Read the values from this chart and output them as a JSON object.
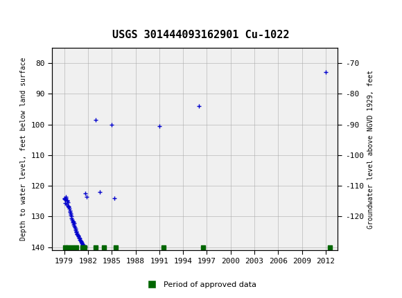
{
  "title": "USGS 301444093162901 Cu-1022",
  "ylabel_left": "Depth to water level, feet below land surface",
  "ylabel_right": "Groundwater level above NGVD 1929, feet",
  "xlabel": "",
  "ylim_left": [
    75,
    141
  ],
  "ylim_right": [
    -65,
    -131
  ],
  "yticks_left": [
    80,
    90,
    100,
    110,
    120,
    130,
    140
  ],
  "yticks_right": [
    -70,
    -80,
    -90,
    -100,
    -110,
    -120
  ],
  "xticks": [
    1979,
    1982,
    1985,
    1988,
    1991,
    1994,
    1997,
    2000,
    2003,
    2006,
    2009,
    2012
  ],
  "xlim": [
    1977.5,
    2013.5
  ],
  "blue_points": [
    [
      1979.1,
      124.5
    ],
    [
      1979.15,
      125.5
    ],
    [
      1979.2,
      124.0
    ],
    [
      1979.25,
      123.5
    ],
    [
      1979.3,
      126.0
    ],
    [
      1979.35,
      125.0
    ],
    [
      1979.4,
      124.8
    ],
    [
      1979.45,
      125.3
    ],
    [
      1979.5,
      126.5
    ],
    [
      1979.55,
      127.0
    ],
    [
      1979.6,
      126.8
    ],
    [
      1979.65,
      127.5
    ],
    [
      1979.7,
      128.0
    ],
    [
      1979.75,
      128.5
    ],
    [
      1979.8,
      129.0
    ],
    [
      1979.85,
      129.5
    ],
    [
      1979.9,
      130.0
    ],
    [
      1979.95,
      130.5
    ],
    [
      1980.0,
      131.0
    ],
    [
      1980.05,
      131.5
    ],
    [
      1980.1,
      132.0
    ],
    [
      1980.15,
      132.5
    ],
    [
      1980.2,
      131.8
    ],
    [
      1980.25,
      132.2
    ],
    [
      1980.3,
      133.0
    ],
    [
      1980.35,
      133.5
    ],
    [
      1980.4,
      134.0
    ],
    [
      1980.45,
      134.5
    ],
    [
      1980.5,
      134.8
    ],
    [
      1980.55,
      135.0
    ],
    [
      1980.6,
      135.5
    ],
    [
      1980.65,
      135.8
    ],
    [
      1980.7,
      136.0
    ],
    [
      1980.75,
      136.3
    ],
    [
      1980.8,
      136.5
    ],
    [
      1980.85,
      136.8
    ],
    [
      1980.9,
      137.0
    ],
    [
      1980.95,
      137.2
    ],
    [
      1981.0,
      137.5
    ],
    [
      1981.05,
      137.8
    ],
    [
      1981.1,
      138.0
    ],
    [
      1981.15,
      138.2
    ],
    [
      1981.2,
      138.5
    ],
    [
      1981.25,
      138.7
    ],
    [
      1981.3,
      139.0
    ],
    [
      1981.35,
      139.2
    ],
    [
      1981.4,
      139.4
    ],
    [
      1981.45,
      139.6
    ],
    [
      1981.5,
      139.8
    ],
    [
      1981.55,
      140.0
    ],
    [
      1981.6,
      140.0
    ],
    [
      1981.65,
      139.9
    ],
    [
      1981.7,
      122.5
    ],
    [
      1981.8,
      123.5
    ],
    [
      1979.05,
      124.3
    ],
    [
      1979.0,
      124.0
    ],
    [
      1983.0,
      98.5
    ],
    [
      1985.0,
      100.0
    ],
    [
      1983.5,
      122.0
    ],
    [
      1985.3,
      124.0
    ],
    [
      1991.0,
      100.5
    ],
    [
      1996.0,
      94.0
    ],
    [
      2012.0,
      83.0
    ]
  ],
  "green_points": [
    [
      1979.1,
      140
    ],
    [
      1979.5,
      140
    ],
    [
      1980.0,
      140
    ],
    [
      1980.5,
      140
    ],
    [
      1981.3,
      140
    ],
    [
      1981.6,
      140
    ],
    [
      1983.0,
      140
    ],
    [
      1984.0,
      140
    ],
    [
      1985.5,
      140
    ],
    [
      1991.5,
      140
    ],
    [
      1996.5,
      140
    ],
    [
      2012.5,
      140
    ]
  ],
  "marker_color_blue": "#0000cc",
  "marker_color_green": "#006600",
  "header_color": "#005c2e",
  "bg_color": "#ffffff",
  "plot_bg": "#f0f0f0",
  "grid_color": "#aaaaaa",
  "legend_label": "Period of approved data"
}
